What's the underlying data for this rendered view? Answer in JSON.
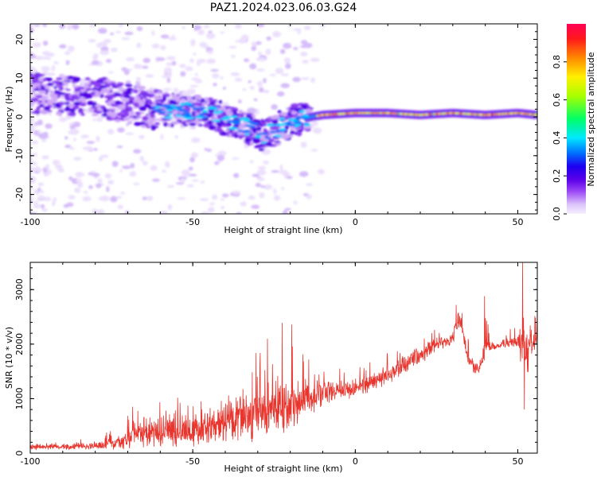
{
  "title": "PAZ1.2024.023.06.03.G24",
  "chart_data": [
    {
      "type": "heatmap",
      "title": "PAZ1.2024.023.06.03.G24",
      "xlabel": "Height of straight line (km)",
      "ylabel": "Frequency (Hz)",
      "xlim": [
        -100,
        56
      ],
      "ylim": [
        -25,
        24
      ],
      "xticks": [
        -100,
        -50,
        0,
        50
      ],
      "yticks": [
        -20,
        -10,
        0,
        10,
        20
      ],
      "colorbar": {
        "label": "Normalized spectral amplitude",
        "range": [
          0,
          1
        ],
        "ticks": [
          "0.0",
          "0.2",
          "0.4",
          "0.6",
          "0.8"
        ],
        "colors": [
          "#f6f0ff",
          "#dcc4fb",
          "#9a46f5",
          "#5a00e8",
          "#1d00f0",
          "#0070ff",
          "#00e8ff",
          "#00ff66",
          "#a8ff00",
          "#fff000",
          "#ff8a00",
          "#ff1a1a",
          "#ff0055"
        ]
      },
      "centerline": {
        "x": [
          -100,
          -90,
          -80,
          -70,
          -60,
          -55,
          -45,
          -35,
          -28,
          -24,
          -20,
          -10,
          0,
          10,
          20,
          30,
          40,
          50,
          56
        ],
        "y": [
          6,
          5.5,
          5,
          3.5,
          1.5,
          2,
          1,
          -2,
          -5,
          -3,
          -1,
          0.5,
          1,
          1,
          0.5,
          1,
          0.5,
          1,
          0.5
        ]
      }
    },
    {
      "type": "line",
      "xlabel": "Height of straight line (km)",
      "ylabel": "SNR (10 * v/v)",
      "xlim": [
        -100,
        56
      ],
      "ylim": [
        0,
        3500
      ],
      "xticks": [
        -100,
        -50,
        0,
        50
      ],
      "yticks": [
        0,
        1000,
        2000,
        3000
      ],
      "color": "#e8352e",
      "envelope": {
        "x": [
          -100,
          -90,
          -80,
          -72,
          -68,
          -60,
          -50,
          -40,
          -30,
          -25,
          -20,
          -15,
          -10,
          -5,
          0,
          5,
          10,
          15,
          20,
          25,
          30,
          32,
          33,
          35,
          38,
          40,
          42,
          45,
          50,
          52,
          53,
          54,
          56
        ],
        "base": [
          110,
          120,
          140,
          200,
          350,
          380,
          420,
          520,
          700,
          800,
          900,
          1000,
          1100,
          1150,
          1200,
          1300,
          1450,
          1600,
          1800,
          2000,
          2100,
          2500,
          2200,
          1700,
          1500,
          1950,
          1950,
          2000,
          2050,
          1900,
          1700,
          2000,
          2150
        ],
        "amp": [
          60,
          60,
          80,
          150,
          300,
          300,
          350,
          450,
          600,
          750,
          600,
          450,
          300,
          250,
          200,
          200,
          200,
          200,
          180,
          150,
          150,
          250,
          200,
          200,
          150,
          300,
          100,
          100,
          150,
          800,
          600,
          300,
          200
        ]
      },
      "spikes": [
        {
          "x": 51.5,
          "y": 3500
        },
        {
          "x": 52.0,
          "y": 800
        },
        {
          "x": 39.8,
          "y": 2880
        },
        {
          "x": 31.0,
          "y": 2720
        },
        {
          "x": -22.5,
          "y": 2390
        },
        {
          "x": -19.5,
          "y": 2360
        },
        {
          "x": -27.0,
          "y": 2100
        }
      ]
    }
  ]
}
